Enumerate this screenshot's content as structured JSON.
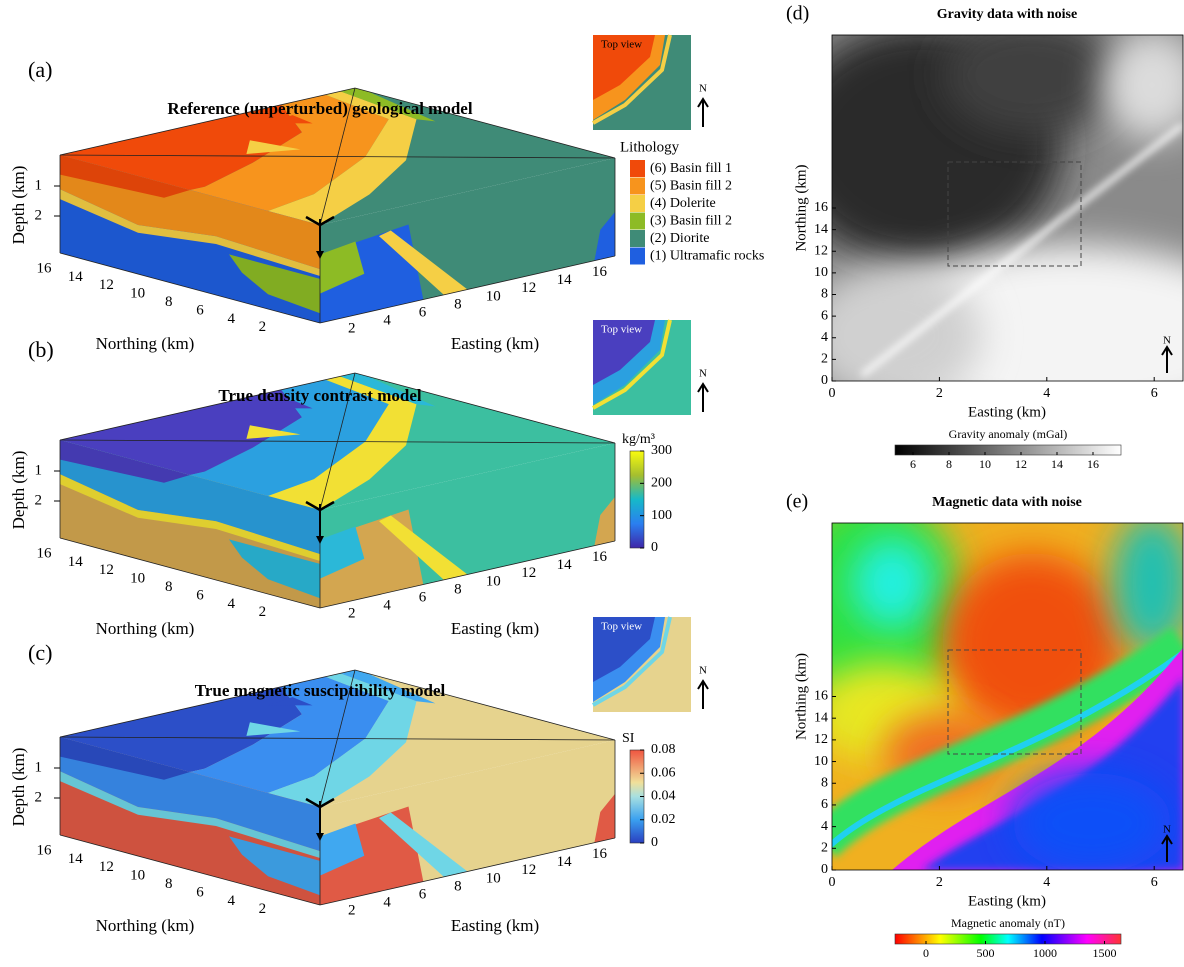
{
  "panels": [
    {
      "label": "(a)",
      "title": "Reference (unperturbed) geological model",
      "inset_label": "Top view",
      "north": "N",
      "depth_label": "Depth (km)",
      "depth_ticks": [
        "1",
        "2"
      ],
      "northing_label": "Northing (km)",
      "northing_ticks": [
        "16",
        "14",
        "12",
        "10",
        "8",
        "6",
        "4",
        "2"
      ],
      "easting_label": "Easting (km)",
      "easting_ticks": [
        "2",
        "4",
        "6",
        "8",
        "10",
        "12",
        "14",
        "16"
      ],
      "legend_title": "Lithology",
      "legend": [
        "(6) Basin fill 1",
        "(5) Basin fill 2",
        "(4) Dolerite",
        "(3) Basin fill 2",
        "(2) Diorite",
        "(1) Ultramafic rocks"
      ]
    },
    {
      "label": "(b)",
      "title": "True density contrast model",
      "inset_label": "Top view",
      "north": "N",
      "depth_label": "Depth (km)",
      "depth_ticks": [
        "1",
        "2"
      ],
      "northing_label": "Northing (km)",
      "northing_ticks": [
        "16",
        "14",
        "12",
        "10",
        "8",
        "6",
        "4",
        "2"
      ],
      "easting_label": "Easting (km)",
      "easting_ticks": [
        "2",
        "4",
        "6",
        "8",
        "10",
        "12",
        "14",
        "16"
      ],
      "colorbar_title": "kg/m³",
      "colorbar_ticks": [
        "300",
        "200",
        "100",
        "0"
      ]
    },
    {
      "label": "(c)",
      "title": "True magnetic susciptibility model",
      "inset_label": "Top view",
      "north": "N",
      "depth_label": "Depth (km)",
      "depth_ticks": [
        "1",
        "2"
      ],
      "northing_label": "Northing (km)",
      "northing_ticks": [
        "16",
        "14",
        "12",
        "10",
        "8",
        "6",
        "4",
        "2"
      ],
      "easting_label": "Easting (km)",
      "easting_ticks": [
        "2",
        "4",
        "6",
        "8",
        "10",
        "12",
        "14",
        "16"
      ],
      "colorbar_title": "SI",
      "colorbar_ticks": [
        "0.08",
        "0.06",
        "0.04",
        "0.02",
        "0"
      ]
    }
  ],
  "maps": [
    {
      "label": "(d)",
      "title": "Gravity data with noise",
      "north": "N",
      "ylabel": "Northing (km)",
      "yticks": [
        "0",
        "2",
        "4",
        "6",
        "8",
        "10",
        "12",
        "14",
        "16"
      ],
      "xlabel": "Easting (km)",
      "xticks": [
        "0",
        "2",
        "4",
        "6"
      ],
      "colorbar_label": "Gravity anomaly (mGal)",
      "colorbar_ticks": [
        "6",
        "8",
        "10",
        "12",
        "14",
        "16"
      ]
    },
    {
      "label": "(e)",
      "title": "Magnetic data with noise",
      "north": "N",
      "ylabel": "Northing (km)",
      "yticks": [
        "0",
        "2",
        "4",
        "6",
        "8",
        "10",
        "12",
        "14",
        "16"
      ],
      "xlabel": "Easting (km)",
      "xticks": [
        "0",
        "2",
        "4",
        "6"
      ],
      "colorbar_label": "Magnetic anomaly (nT)",
      "colorbar_ticks": [
        "0",
        "500",
        "1000",
        "1500"
      ]
    }
  ]
}
